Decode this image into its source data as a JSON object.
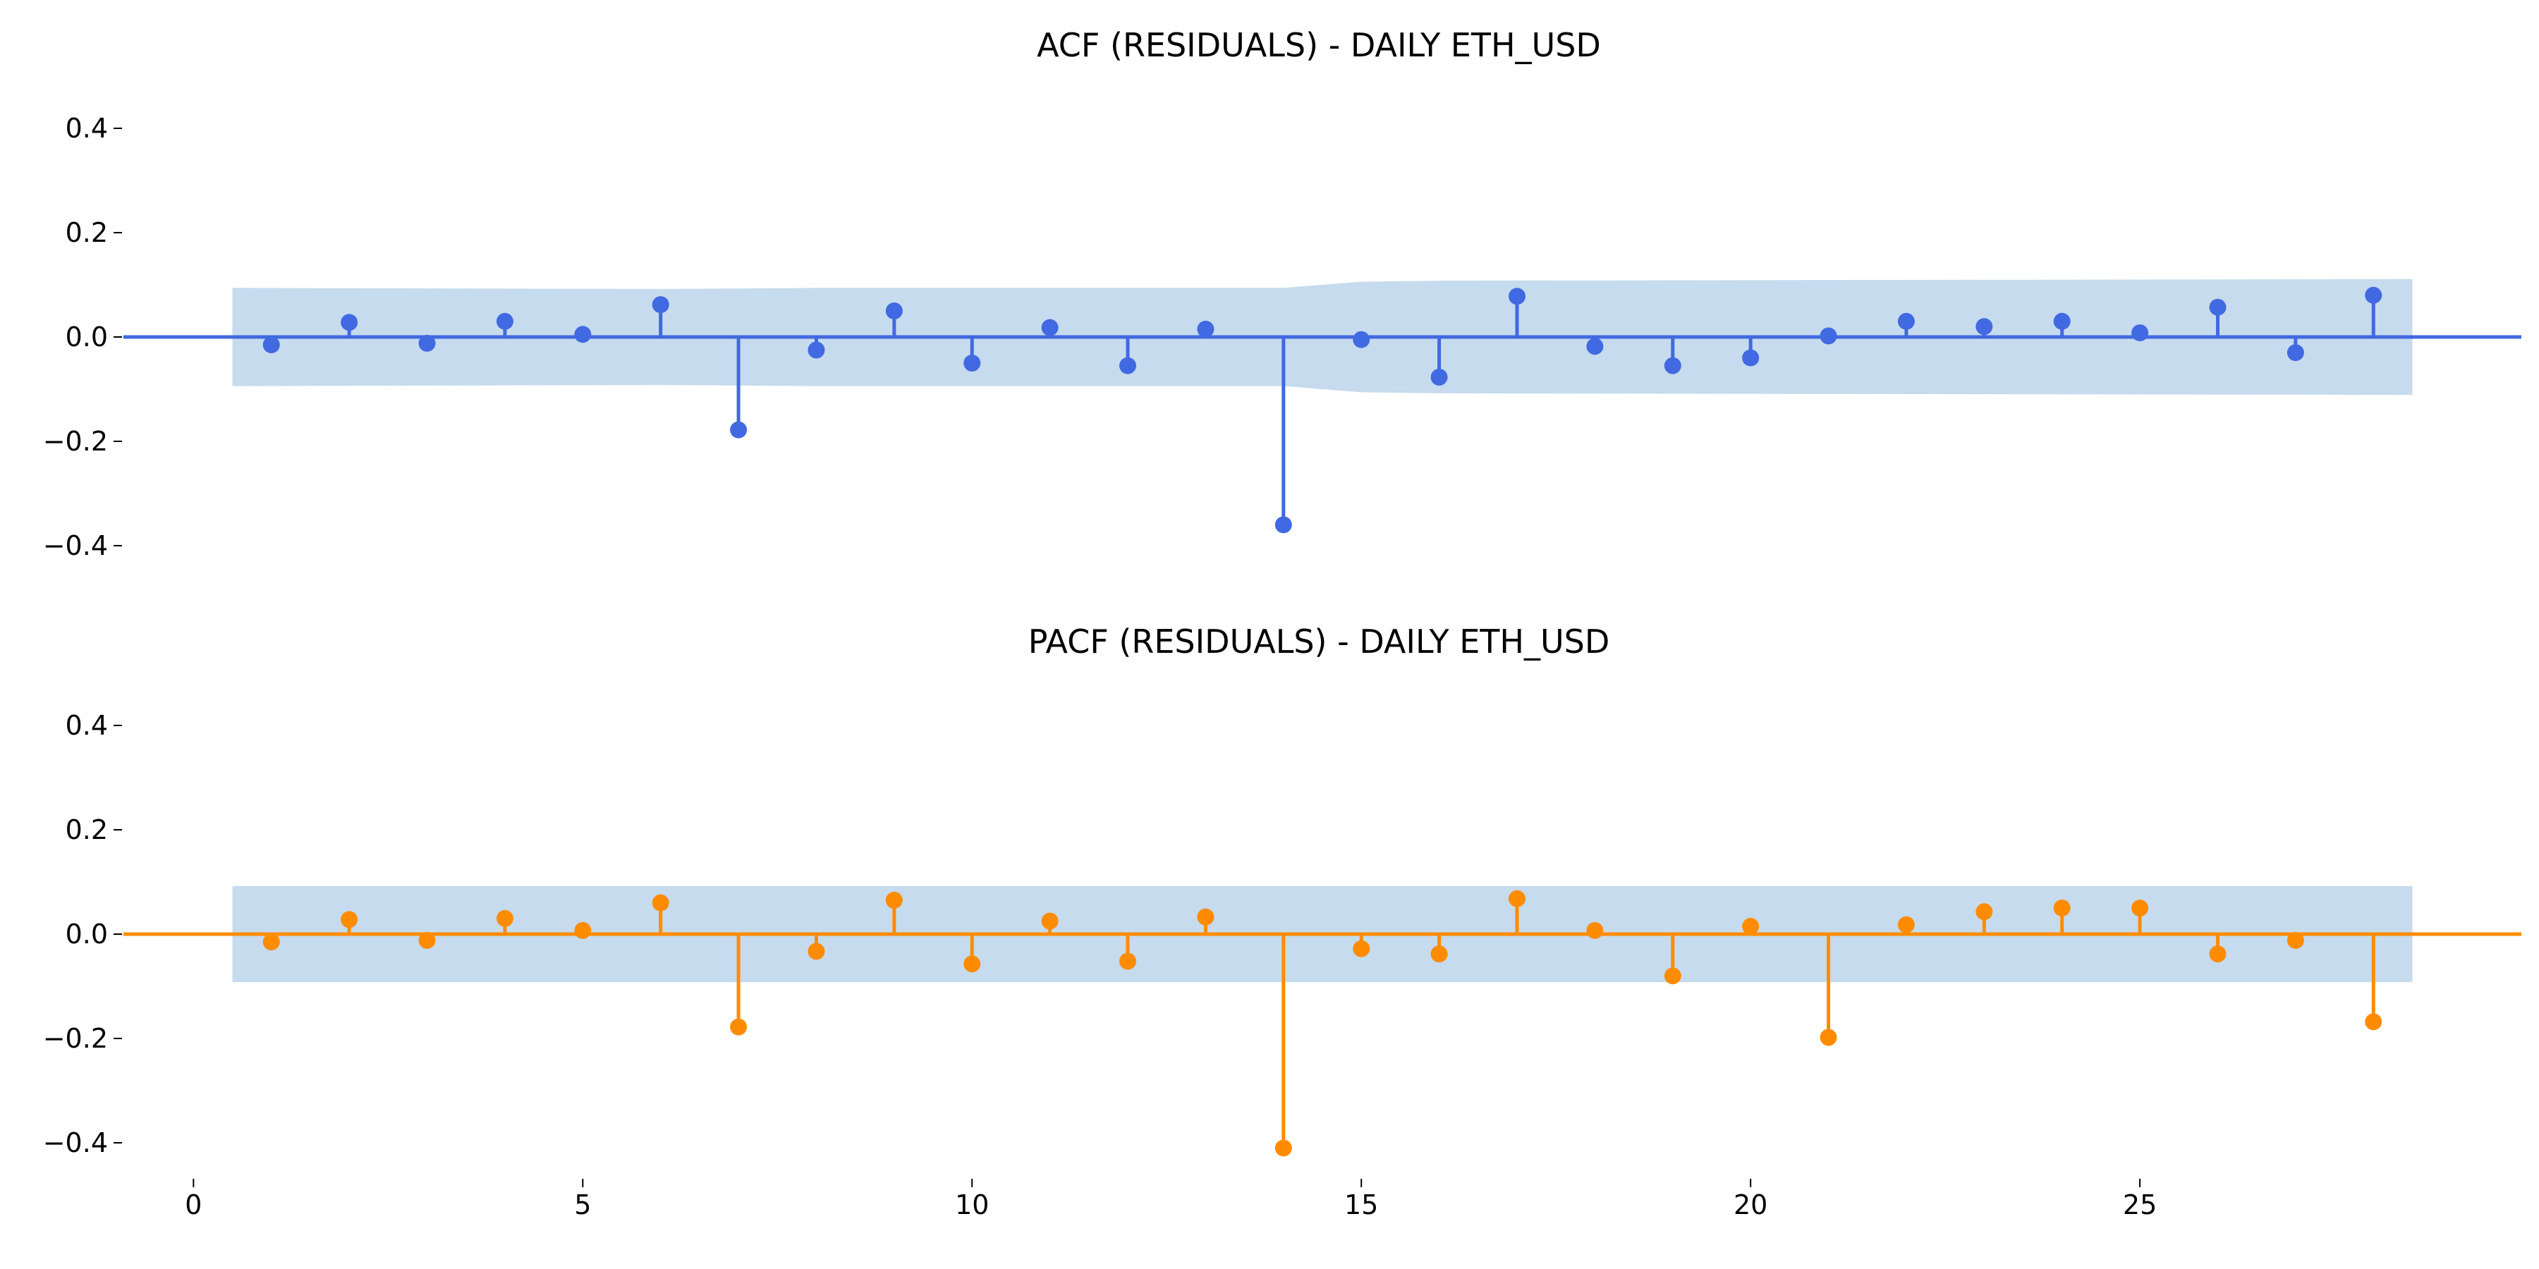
{
  "chart_data": [
    {
      "type": "stem",
      "title": "ACF (RESIDUALS) - DAILY ETH_USD",
      "color": "#4169e1",
      "band_color": "#c6dbed",
      "ylim": [
        -0.48,
        0.48
      ],
      "yticks": [
        0.4,
        0.2,
        0.0,
        -0.2,
        -0.4
      ],
      "ytick_labels": [
        "0.4",
        "0.2",
        "0.0",
        "−0.2",
        "−0.4"
      ],
      "xlim": [
        -0.9,
        29.9
      ],
      "lags": [
        1,
        2,
        3,
        4,
        5,
        6,
        7,
        8,
        9,
        10,
        11,
        12,
        13,
        14,
        15,
        16,
        17,
        18,
        19,
        20,
        21,
        22,
        23,
        24,
        25,
        26,
        27,
        28
      ],
      "values": [
        -0.015,
        0.028,
        -0.012,
        0.03,
        0.005,
        0.062,
        -0.178,
        -0.025,
        0.05,
        -0.05,
        0.018,
        -0.055,
        0.015,
        -0.36,
        -0.005,
        -0.077,
        0.078,
        -0.018,
        -0.055,
        -0.04,
        0.002,
        0.03,
        0.02,
        0.03,
        0.008,
        0.057,
        -0.03,
        0.08
      ],
      "confidence_band": {
        "lags": [
          0.5,
          6,
          8,
          14,
          15,
          16,
          28.5
        ],
        "upper": [
          0.094,
          0.092,
          0.094,
          0.094,
          0.106,
          0.108,
          0.111
        ]
      }
    },
    {
      "type": "stem",
      "title": "PACF (RESIDUALS) - DAILY ETH_USD",
      "color": "#ff8c00",
      "band_color": "#c6dbed",
      "ylim": [
        -0.48,
        0.48
      ],
      "yticks": [
        0.4,
        0.2,
        0.0,
        -0.2,
        -0.4
      ],
      "ytick_labels": [
        "0.4",
        "0.2",
        "0.0",
        "−0.2",
        "−0.4"
      ],
      "xlim": [
        -0.9,
        29.9
      ],
      "xticks": [
        0,
        5,
        10,
        15,
        20,
        25
      ],
      "xtick_labels": [
        "0",
        "5",
        "10",
        "15",
        "20",
        "25"
      ],
      "lags": [
        1,
        2,
        3,
        4,
        5,
        6,
        7,
        8,
        9,
        10,
        11,
        12,
        13,
        14,
        15,
        16,
        17,
        18,
        19,
        20,
        21,
        22,
        23,
        24,
        25,
        26,
        27,
        28
      ],
      "values": [
        -0.015,
        0.028,
        -0.012,
        0.03,
        0.007,
        0.06,
        -0.178,
        -0.033,
        0.065,
        -0.057,
        0.025,
        -0.052,
        0.033,
        -0.41,
        -0.028,
        -0.038,
        0.068,
        0.007,
        -0.08,
        0.015,
        -0.198,
        0.018,
        0.043,
        0.05,
        0.05,
        -0.038,
        -0.012,
        -0.168
      ],
      "confidence_band": {
        "lags": [
          0.5,
          28.5
        ],
        "upper": [
          0.092,
          0.092
        ]
      }
    }
  ]
}
